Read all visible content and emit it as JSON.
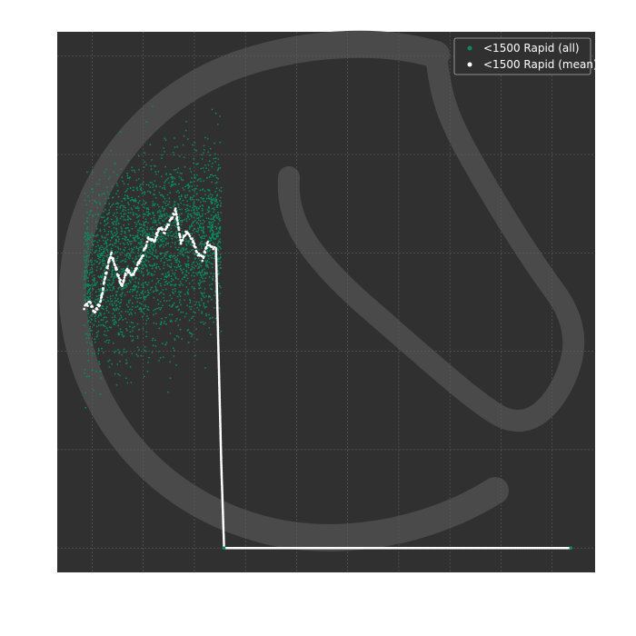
{
  "chart_data": {
    "type": "scatter",
    "title": "",
    "xlabel": "",
    "ylabel": "",
    "grid": true,
    "legend_position": "top-right",
    "xlim": [
      0,
      1
    ],
    "ylim": [
      0,
      1
    ],
    "series": [
      {
        "name": "<1500 Rapid (all)",
        "kind": "scatter",
        "color": "#0b8a5e",
        "x_range": [
          0.05,
          0.305
        ],
        "y_range": [
          0.27,
          0.97
        ],
        "mean_y": 0.55,
        "spread_y": 0.12,
        "count": 2600
      },
      {
        "name": "<1500 Rapid (mean)",
        "kind": "line",
        "color": "#ffffff",
        "points": [
          [
            0.05,
            0.49
          ],
          [
            0.06,
            0.5
          ],
          [
            0.07,
            0.48
          ],
          [
            0.08,
            0.5
          ],
          [
            0.09,
            0.55
          ],
          [
            0.1,
            0.59
          ],
          [
            0.11,
            0.56
          ],
          [
            0.12,
            0.53
          ],
          [
            0.13,
            0.56
          ],
          [
            0.14,
            0.55
          ],
          [
            0.15,
            0.57
          ],
          [
            0.16,
            0.59
          ],
          [
            0.17,
            0.62
          ],
          [
            0.18,
            0.61
          ],
          [
            0.19,
            0.64
          ],
          [
            0.2,
            0.63
          ],
          [
            0.21,
            0.65
          ],
          [
            0.22,
            0.67
          ],
          [
            0.23,
            0.61
          ],
          [
            0.24,
            0.63
          ],
          [
            0.25,
            0.62
          ],
          [
            0.26,
            0.59
          ],
          [
            0.27,
            0.58
          ],
          [
            0.28,
            0.61
          ],
          [
            0.29,
            0.6
          ],
          [
            0.295,
            0.6
          ],
          [
            0.3,
            0.4
          ],
          [
            0.305,
            0.2
          ],
          [
            0.31,
            0.05
          ],
          [
            0.31,
            0.045
          ],
          [
            0.955,
            0.045
          ]
        ]
      }
    ]
  }
}
